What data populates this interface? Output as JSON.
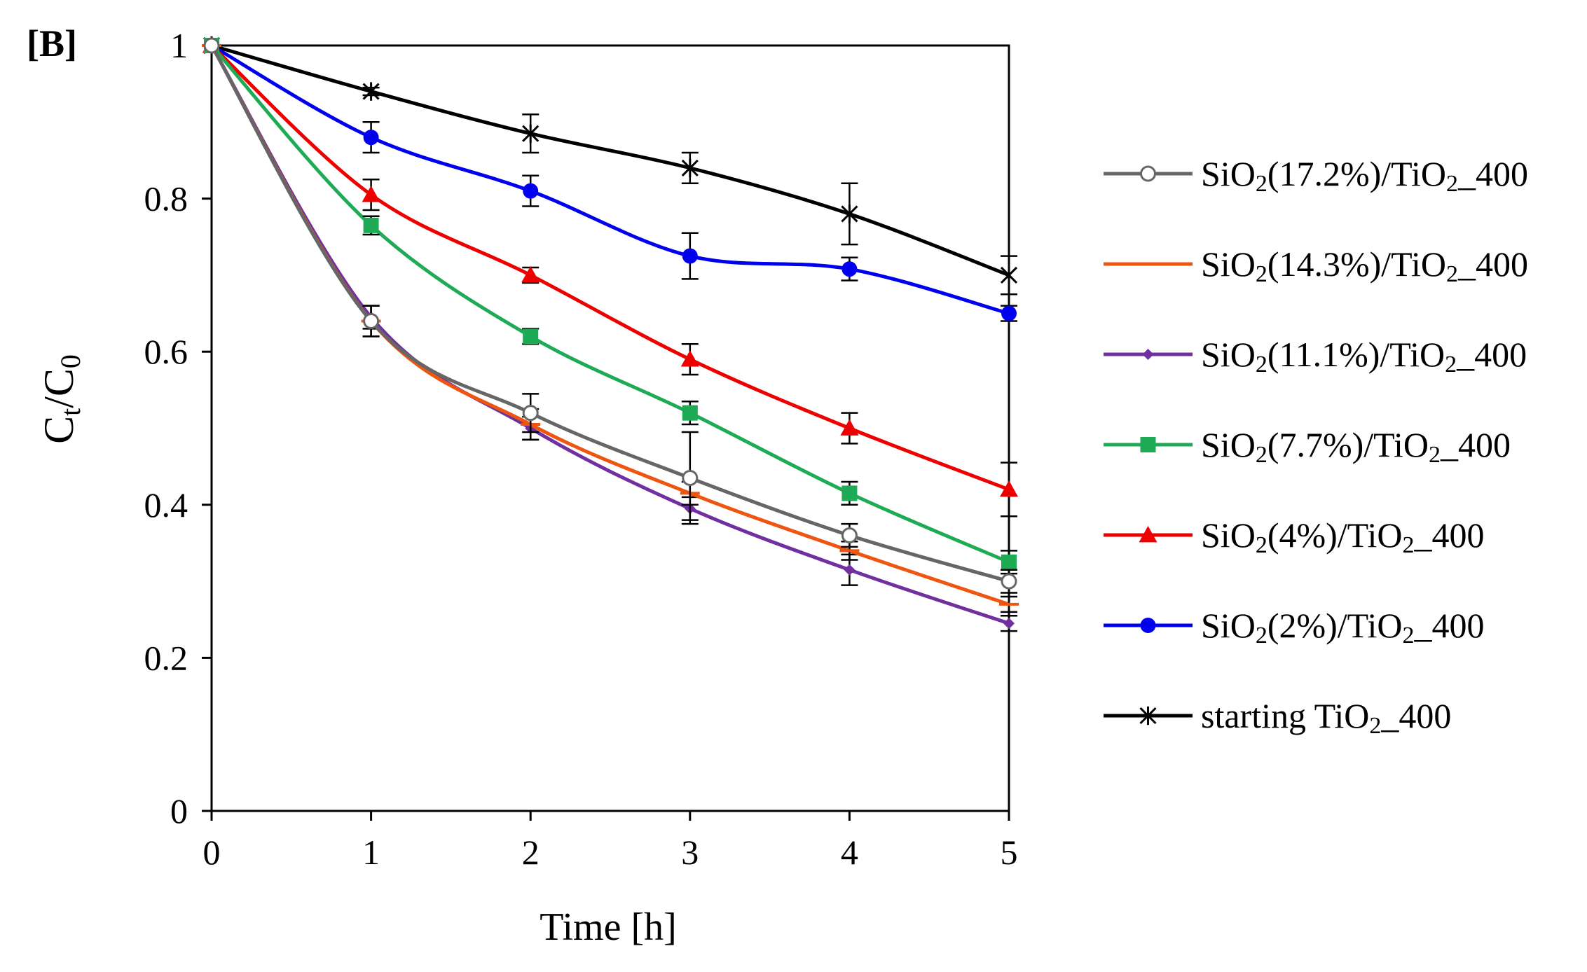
{
  "panel_label": "[B]",
  "chart_data": {
    "type": "line",
    "xlabel": "Time [h]",
    "ylabel_main": "C",
    "ylabel_sub1": "t",
    "ylabel_slash": "/",
    "ylabel_main2": "C",
    "ylabel_sub2": "0",
    "x": [
      0,
      1,
      2,
      3,
      4,
      5
    ],
    "xlim": [
      0,
      5
    ],
    "ylim": [
      0,
      1
    ],
    "x_ticks": [
      0,
      1,
      2,
      3,
      4,
      5
    ],
    "y_ticks": [
      0,
      0.2,
      0.4,
      0.6,
      0.8,
      1
    ],
    "x_tick_labels": [
      "0",
      "1",
      "2",
      "3",
      "4",
      "5"
    ],
    "y_tick_labels": [
      "0",
      "0.2",
      "0.4",
      "0.6",
      "0.8",
      "1"
    ],
    "legend_position": "right",
    "series": [
      {
        "name": "SiO2(17.2%)/TiO2_400",
        "label_pre": "SiO",
        "label_sub1": "2",
        "label_mid": "(17.2%)/TiO",
        "label_sub2": "2",
        "label_post": "_400",
        "color": "#666666",
        "marker": "open-circle",
        "values": [
          1,
          0.64,
          0.52,
          0.435,
          0.36,
          0.3
        ],
        "errors": [
          0,
          0.02,
          0.025,
          0.06,
          0.015,
          0.015
        ]
      },
      {
        "name": "SiO2(14.3%)/TiO2_400",
        "label_pre": "SiO",
        "label_sub1": "2",
        "label_mid": "(14.3%)/TiO",
        "label_sub2": "2",
        "label_post": "_400",
        "color": "#ee5511",
        "marker": "dash",
        "values": [
          1,
          0.64,
          0.505,
          0.415,
          0.34,
          0.27
        ],
        "errors": [
          0,
          0.02,
          0.02,
          0.015,
          0.012,
          0.01
        ]
      },
      {
        "name": "SiO2(11.1%)/TiO2_400",
        "label_pre": "SiO",
        "label_sub1": "2",
        "label_mid": "(11.1%)/TiO",
        "label_sub2": "2",
        "label_post": "_400",
        "color": "#7030a0",
        "marker": "small-diamond",
        "values": [
          1,
          0.645,
          0.5,
          0.395,
          0.315,
          0.245
        ],
        "errors": [
          0,
          0.015,
          0.015,
          0.015,
          0.02,
          0.01
        ]
      },
      {
        "name": "SiO2(7.7%)/TiO2_400",
        "label_pre": "SiO",
        "label_sub1": "2",
        "label_mid": "(7.7%)/TiO",
        "label_sub2": "2",
        "label_post": "_400",
        "color": "#1faa55",
        "marker": "square",
        "values": [
          1,
          0.765,
          0.62,
          0.52,
          0.415,
          0.325
        ],
        "errors": [
          0,
          0.012,
          0.01,
          0.015,
          0.015,
          0.015
        ]
      },
      {
        "name": "SiO2(4%)/TiO2_400",
        "label_pre": "SiO",
        "label_sub1": "2",
        "label_mid": "(4%)/TiO",
        "label_sub2": "2",
        "label_post": "_400",
        "color": "#ee0000",
        "marker": "triangle",
        "values": [
          1,
          0.805,
          0.7,
          0.59,
          0.5,
          0.42
        ],
        "errors": [
          0,
          0.02,
          0.01,
          0.02,
          0.02,
          0.035
        ]
      },
      {
        "name": "SiO2(2%)/TiO2_400",
        "label_pre": "SiO",
        "label_sub1": "2",
        "label_mid": "(2%)/TiO",
        "label_sub2": "2",
        "label_post": "_400",
        "color": "#0000ee",
        "marker": "filled-circle",
        "values": [
          1,
          0.88,
          0.81,
          0.725,
          0.708,
          0.65
        ],
        "errors": [
          0,
          0.02,
          0.02,
          0.03,
          0.015,
          0.01
        ]
      },
      {
        "name": "starting TiO2_400",
        "label_pre": "starting  TiO",
        "label_sub1": "2",
        "label_mid": "_400",
        "label_sub2": "",
        "label_post": "",
        "color": "#000000",
        "marker": "star",
        "values": [
          1,
          0.94,
          0.885,
          0.84,
          0.78,
          0.7
        ],
        "errors": [
          0,
          0.005,
          0.025,
          0.02,
          0.04,
          0.025
        ]
      }
    ]
  }
}
